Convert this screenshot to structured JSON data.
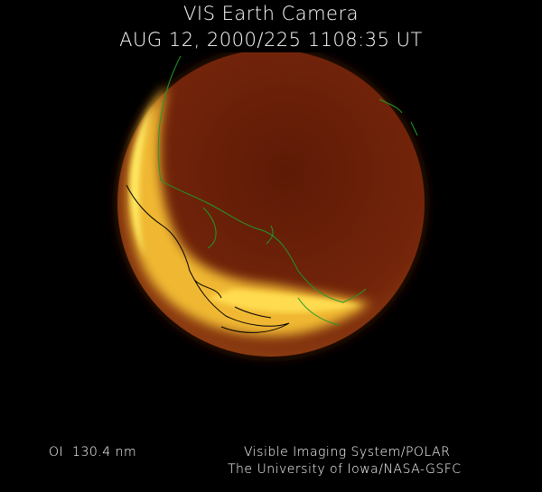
{
  "header": {
    "title": "VIS Earth Camera",
    "datetime": "AUG 12, 2000/225 1108:35 UT"
  },
  "footer": {
    "filter": "OI  130.4 nm",
    "instrument": "Visible Imaging System/POLAR",
    "institution": "The University of Iowa/NASA-GSFC"
  },
  "colors": {
    "background": "#000000",
    "disk": "#6a1e08",
    "aurora": "#ffe040",
    "coastline": "#1f9a2a",
    "coastline_dark": "#000000"
  }
}
